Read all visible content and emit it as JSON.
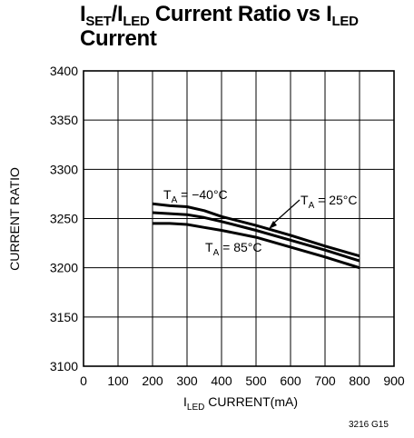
{
  "title": {
    "part1_main": "I",
    "part1_sub": "SET",
    "part2_main": "/I",
    "part2_sub": "LED",
    "part3_main": " Current Ratio vs I",
    "part3_sub": "LED",
    "line2": "Current"
  },
  "figure_code": "3216 G15",
  "chart_data": {
    "type": "line",
    "xlabel_main": "I",
    "xlabel_sub": "LED",
    "xlabel_rest": " CURRENT(mA)",
    "ylabel": "CURRENT RATIO",
    "xlim": [
      0,
      900
    ],
    "ylim": [
      3100,
      3400
    ],
    "x_ticks": [
      0,
      100,
      200,
      300,
      400,
      500,
      600,
      700,
      800,
      900
    ],
    "y_ticks": [
      3100,
      3150,
      3200,
      3250,
      3300,
      3350,
      3400
    ],
    "grid": true,
    "series": [
      {
        "name": "T_A = −40°C",
        "x": [
          200,
          250,
          300,
          350,
          400,
          500,
          600,
          700,
          800
        ],
        "y": [
          3265,
          3263,
          3262,
          3258,
          3252,
          3243,
          3233,
          3222,
          3212
        ]
      },
      {
        "name": "T_A = 25°C",
        "x": [
          200,
          250,
          300,
          350,
          400,
          500,
          600,
          700,
          800
        ],
        "y": [
          3256,
          3255,
          3254,
          3251,
          3247,
          3238,
          3228,
          3218,
          3207
        ]
      },
      {
        "name": "T_A = 85°C",
        "x": [
          200,
          250,
          300,
          350,
          400,
          500,
          600,
          700,
          800
        ],
        "y": [
          3245,
          3245,
          3244,
          3241,
          3238,
          3231,
          3221,
          3211,
          3200
        ]
      }
    ],
    "annotations": [
      {
        "main": "T",
        "sub": "A",
        "rest": " = −40°C"
      },
      {
        "main": "T",
        "sub": "A",
        "rest": " = 25°C"
      },
      {
        "main": "T",
        "sub": "A",
        "rest": " = 85°C"
      }
    ]
  }
}
